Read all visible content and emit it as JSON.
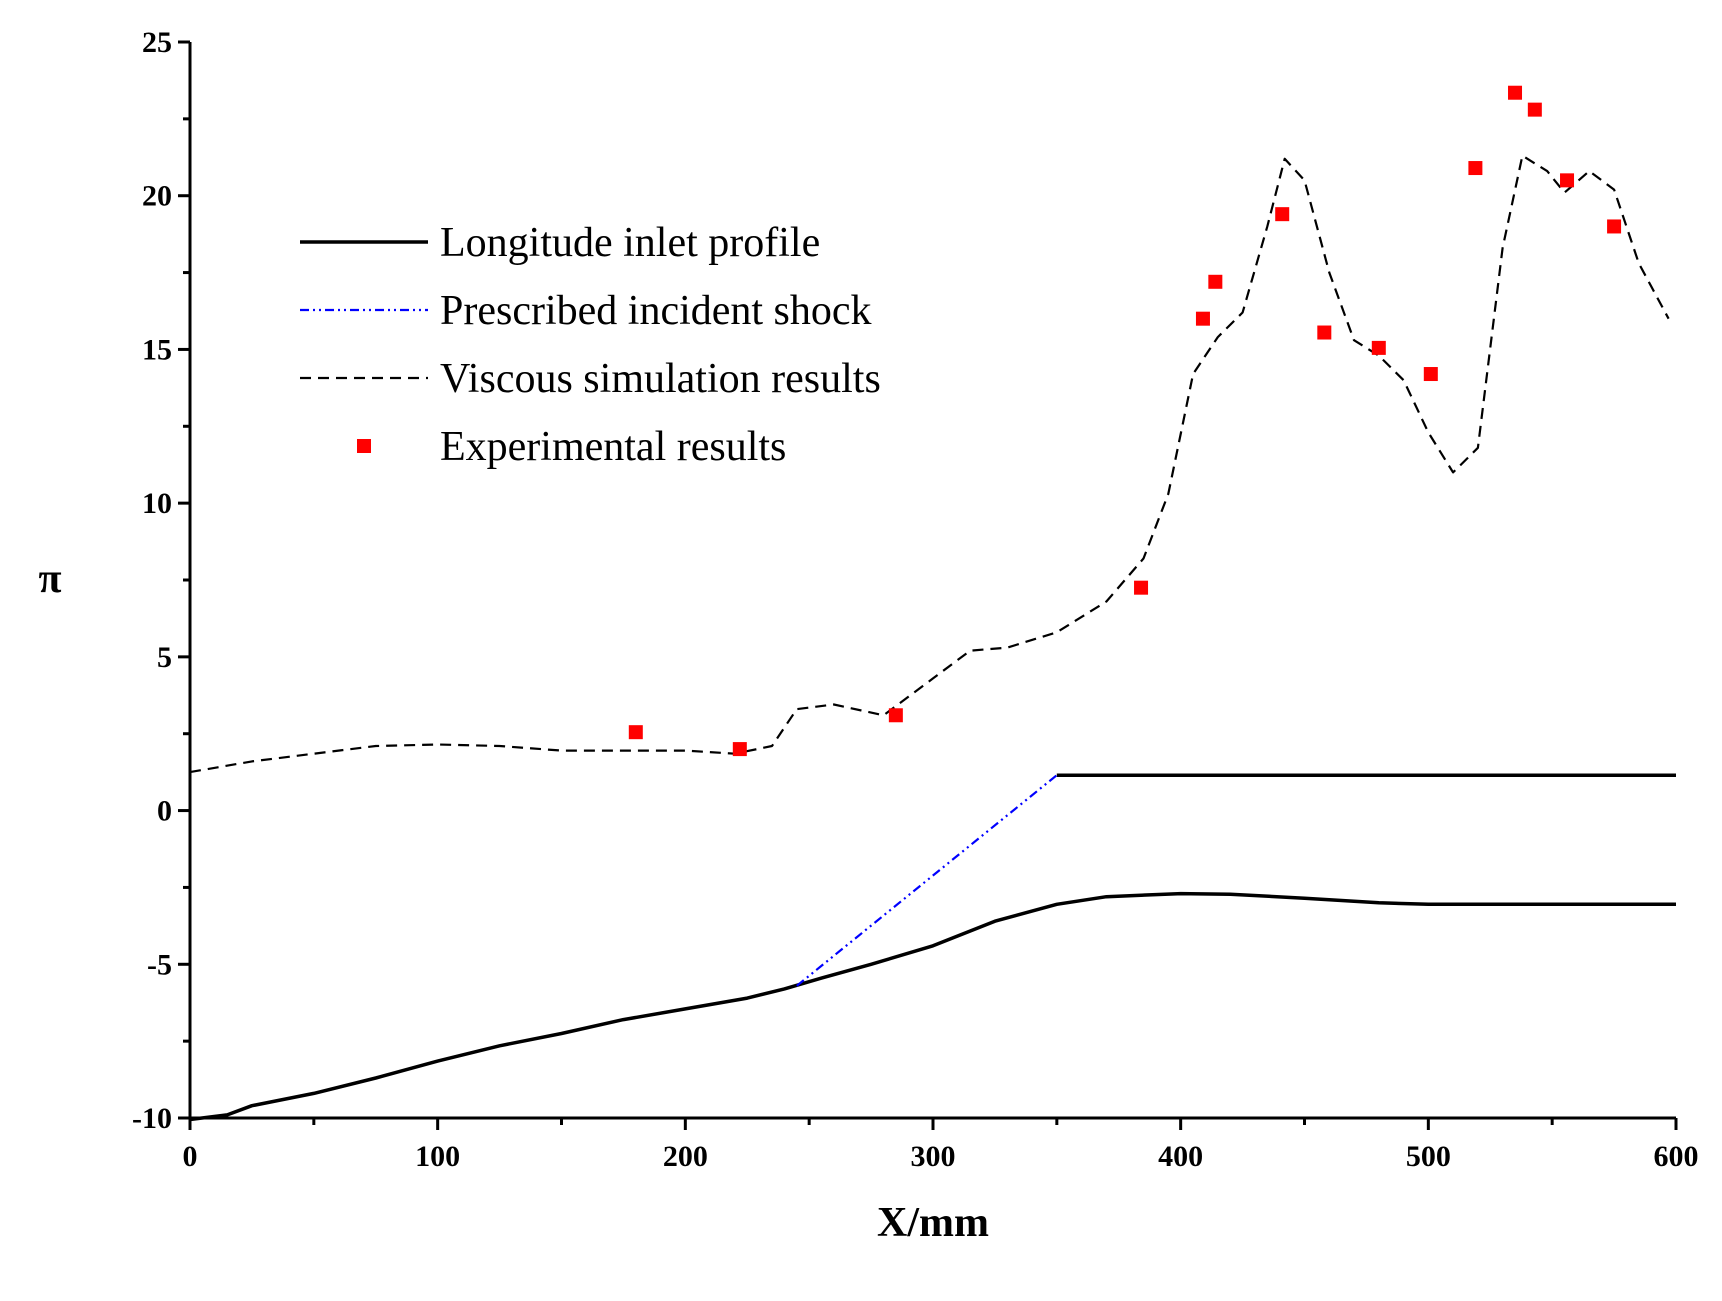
{
  "chart_data": {
    "type": "line",
    "xlabel": "X/mm",
    "ylabel": "π",
    "xlim": [
      0,
      600
    ],
    "ylim": [
      -10,
      25
    ],
    "xticks": [
      0,
      100,
      200,
      300,
      400,
      500,
      600
    ],
    "yticks": [
      -10,
      -5,
      0,
      5,
      10,
      15,
      20,
      25
    ],
    "legend_position": "upper-left",
    "grid": false,
    "series": [
      {
        "name": "Longitude inlet profile",
        "style": "solid",
        "color": "#000000",
        "segments": [
          [
            [
              0,
              -10.05
            ],
            [
              15,
              -9.9
            ],
            [
              25,
              -9.6
            ],
            [
              50,
              -9.2
            ],
            [
              75,
              -8.7
            ],
            [
              100,
              -8.15
            ],
            [
              125,
              -7.65
            ],
            [
              150,
              -7.25
            ],
            [
              175,
              -6.8
            ],
            [
              200,
              -6.45
            ],
            [
              225,
              -6.1
            ],
            [
              240,
              -5.8
            ],
            [
              255,
              -5.45
            ],
            [
              275,
              -5.0
            ],
            [
              300,
              -4.4
            ],
            [
              325,
              -3.6
            ],
            [
              350,
              -3.05
            ],
            [
              370,
              -2.8
            ],
            [
              400,
              -2.7
            ],
            [
              420,
              -2.72
            ],
            [
              450,
              -2.85
            ],
            [
              480,
              -3.0
            ],
            [
              500,
              -3.05
            ],
            [
              600,
              -3.05
            ]
          ],
          [
            [
              350,
              1.15
            ],
            [
              600,
              1.15
            ]
          ]
        ]
      },
      {
        "name": "Prescribed incident shock",
        "style": "dash-dot-dot",
        "color": "#0000ff",
        "points": [
          [
            245,
            -5.7
          ],
          [
            350,
            1.15
          ]
        ]
      },
      {
        "name": "Viscous simulation results",
        "style": "dashed",
        "color": "#000000",
        "points": [
          [
            0,
            1.25
          ],
          [
            25,
            1.6
          ],
          [
            50,
            1.85
          ],
          [
            75,
            2.1
          ],
          [
            100,
            2.15
          ],
          [
            125,
            2.1
          ],
          [
            150,
            1.95
          ],
          [
            175,
            1.95
          ],
          [
            200,
            1.95
          ],
          [
            220,
            1.85
          ],
          [
            235,
            2.1
          ],
          [
            245,
            3.3
          ],
          [
            260,
            3.45
          ],
          [
            280,
            3.1
          ],
          [
            300,
            4.3
          ],
          [
            315,
            5.2
          ],
          [
            330,
            5.3
          ],
          [
            350,
            5.8
          ],
          [
            370,
            6.8
          ],
          [
            385,
            8.2
          ],
          [
            395,
            10.3
          ],
          [
            405,
            14.2
          ],
          [
            415,
            15.4
          ],
          [
            425,
            16.2
          ],
          [
            435,
            19.0
          ],
          [
            442,
            21.2
          ],
          [
            450,
            20.5
          ],
          [
            460,
            17.5
          ],
          [
            470,
            15.3
          ],
          [
            480,
            14.8
          ],
          [
            490,
            14.0
          ],
          [
            500,
            12.3
          ],
          [
            510,
            11.0
          ],
          [
            520,
            11.8
          ],
          [
            530,
            18.3
          ],
          [
            538,
            21.3
          ],
          [
            548,
            20.8
          ],
          [
            555,
            20.1
          ],
          [
            565,
            20.8
          ],
          [
            575,
            20.2
          ],
          [
            585,
            17.8
          ],
          [
            597,
            16.0
          ]
        ]
      },
      {
        "name": "Experimental results",
        "style": "marker-square",
        "color": "#ff0000",
        "points": [
          [
            180,
            2.55
          ],
          [
            222,
            2.0
          ],
          [
            285,
            3.1
          ],
          [
            384,
            7.25
          ],
          [
            409,
            16.0
          ],
          [
            414,
            17.2
          ],
          [
            441,
            19.4
          ],
          [
            458,
            15.55
          ],
          [
            480,
            15.05
          ],
          [
            501,
            14.2
          ],
          [
            519,
            20.9
          ],
          [
            535,
            23.35
          ],
          [
            543,
            22.8
          ],
          [
            556,
            20.5
          ],
          [
            575,
            19.0
          ]
        ]
      }
    ]
  }
}
